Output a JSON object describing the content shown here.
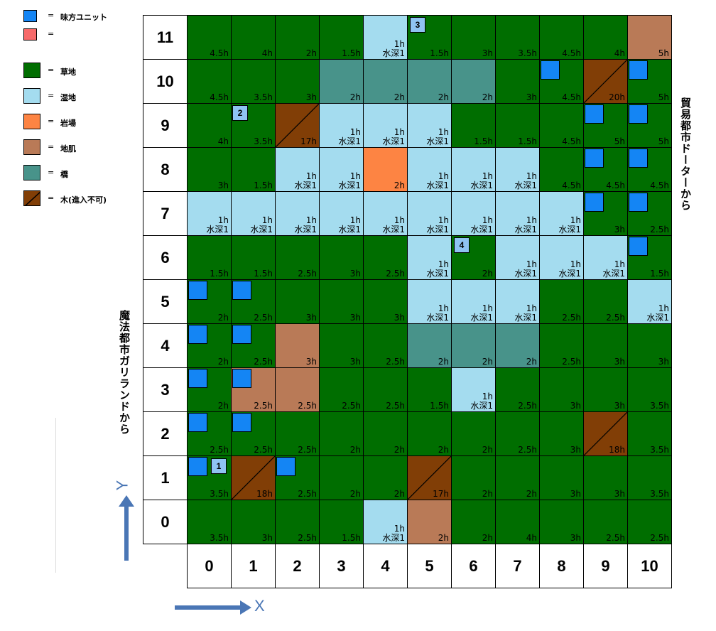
{
  "legend": {
    "items": [
      {
        "key": "ally",
        "label": "味方ユニット",
        "color": "#1485f4",
        "small": true
      },
      {
        "key": "enemy",
        "label": "",
        "color": "#f76a6a",
        "small": true
      },
      {
        "key": "grass",
        "label": "草地",
        "color": "#006e00"
      },
      {
        "key": "wet",
        "label": "湿地",
        "color": "#a4dcef"
      },
      {
        "key": "rock",
        "label": "岩場",
        "color": "#fd8443"
      },
      {
        "key": "soil",
        "label": "地肌",
        "color": "#b97a57"
      },
      {
        "key": "bridge",
        "label": "橋",
        "color": "#48938a"
      },
      {
        "key": "tree",
        "label": "木(進入不可)",
        "color": "#813e06",
        "diag": true
      }
    ],
    "eq": "="
  },
  "terrain_colors": {
    "G": "#006e00",
    "W": "#a4dcef",
    "R": "#fd8443",
    "S": "#b97a57",
    "B": "#48938a",
    "T": "#813e06"
  },
  "water_label": "水深1",
  "map": {
    "rows": [
      {
        "y": "11",
        "cells": [
          {
            "t": "G",
            "c": "4.5h"
          },
          {
            "t": "G",
            "c": "4h"
          },
          {
            "t": "G",
            "c": "2h"
          },
          {
            "t": "G",
            "c": "1.5h"
          },
          {
            "t": "W",
            "c": "1h",
            "w": true
          },
          {
            "t": "G",
            "c": "1.5h"
          },
          {
            "t": "G",
            "c": "3h"
          },
          {
            "t": "G",
            "c": "3.5h"
          },
          {
            "t": "G",
            "c": "4.5h"
          },
          {
            "t": "G",
            "c": "4h"
          },
          {
            "t": "S",
            "c": "5h"
          }
        ]
      },
      {
        "y": "10",
        "cells": [
          {
            "t": "G",
            "c": "4.5h"
          },
          {
            "t": "G",
            "c": "3.5h"
          },
          {
            "t": "G",
            "c": "3h"
          },
          {
            "t": "B",
            "c": "2h"
          },
          {
            "t": "B",
            "c": "2h"
          },
          {
            "t": "B",
            "c": "2h"
          },
          {
            "t": "B",
            "c": "2h"
          },
          {
            "t": "G",
            "c": "3h"
          },
          {
            "t": "G",
            "c": "4.5h"
          },
          {
            "t": "T",
            "c": "20h"
          },
          {
            "t": "G",
            "c": "5h"
          }
        ]
      },
      {
        "y": "9",
        "cells": [
          {
            "t": "G",
            "c": "4h"
          },
          {
            "t": "G",
            "c": "3.5h"
          },
          {
            "t": "T",
            "c": "17h"
          },
          {
            "t": "W",
            "c": "1h",
            "w": true
          },
          {
            "t": "W",
            "c": "1h",
            "w": true
          },
          {
            "t": "W",
            "c": "1h",
            "w": true
          },
          {
            "t": "G",
            "c": "1.5h"
          },
          {
            "t": "G",
            "c": "1.5h"
          },
          {
            "t": "G",
            "c": "4.5h"
          },
          {
            "t": "G",
            "c": "5h"
          },
          {
            "t": "G",
            "c": "5h"
          }
        ]
      },
      {
        "y": "8",
        "cells": [
          {
            "t": "G",
            "c": "3h"
          },
          {
            "t": "G",
            "c": "1.5h"
          },
          {
            "t": "W",
            "c": "1h",
            "w": true
          },
          {
            "t": "W",
            "c": "1h",
            "w": true
          },
          {
            "t": "R",
            "c": "2h"
          },
          {
            "t": "W",
            "c": "1h",
            "w": true
          },
          {
            "t": "W",
            "c": "1h",
            "w": true
          },
          {
            "t": "W",
            "c": "1h",
            "w": true
          },
          {
            "t": "G",
            "c": "4.5h"
          },
          {
            "t": "G",
            "c": "4.5h"
          },
          {
            "t": "G",
            "c": "4.5h"
          }
        ]
      },
      {
        "y": "7",
        "cells": [
          {
            "t": "W",
            "c": "1h",
            "w": true
          },
          {
            "t": "W",
            "c": "1h",
            "w": true
          },
          {
            "t": "W",
            "c": "1h",
            "w": true
          },
          {
            "t": "W",
            "c": "1h",
            "w": true
          },
          {
            "t": "W",
            "c": "1h",
            "w": true
          },
          {
            "t": "W",
            "c": "1h",
            "w": true
          },
          {
            "t": "W",
            "c": "1h",
            "w": true
          },
          {
            "t": "W",
            "c": "1h",
            "w": true
          },
          {
            "t": "W",
            "c": "1h",
            "w": true
          },
          {
            "t": "G",
            "c": "3h"
          },
          {
            "t": "G",
            "c": "2.5h"
          }
        ]
      },
      {
        "y": "6",
        "cells": [
          {
            "t": "G",
            "c": "1.5h"
          },
          {
            "t": "G",
            "c": "1.5h"
          },
          {
            "t": "G",
            "c": "2.5h"
          },
          {
            "t": "G",
            "c": "3h"
          },
          {
            "t": "G",
            "c": "2.5h"
          },
          {
            "t": "W",
            "c": "1h",
            "w": true
          },
          {
            "t": "G",
            "c": "2h"
          },
          {
            "t": "W",
            "c": "1h",
            "w": true
          },
          {
            "t": "W",
            "c": "1h",
            "w": true
          },
          {
            "t": "W",
            "c": "1h",
            "w": true
          },
          {
            "t": "G",
            "c": "1.5h"
          }
        ]
      },
      {
        "y": "5",
        "cells": [
          {
            "t": "G",
            "c": "2h"
          },
          {
            "t": "G",
            "c": "2.5h"
          },
          {
            "t": "G",
            "c": "3h"
          },
          {
            "t": "G",
            "c": "3h"
          },
          {
            "t": "G",
            "c": "3h"
          },
          {
            "t": "W",
            "c": "1h",
            "w": true
          },
          {
            "t": "W",
            "c": "1h",
            "w": true
          },
          {
            "t": "W",
            "c": "1h",
            "w": true
          },
          {
            "t": "G",
            "c": "2.5h"
          },
          {
            "t": "G",
            "c": "2.5h"
          },
          {
            "t": "W",
            "c": "1h",
            "w": true
          }
        ]
      },
      {
        "y": "4",
        "cells": [
          {
            "t": "G",
            "c": "2h"
          },
          {
            "t": "G",
            "c": "2.5h"
          },
          {
            "t": "S",
            "c": "3h"
          },
          {
            "t": "G",
            "c": "3h"
          },
          {
            "t": "G",
            "c": "2.5h"
          },
          {
            "t": "B",
            "c": "2h"
          },
          {
            "t": "B",
            "c": "2h"
          },
          {
            "t": "B",
            "c": "2h"
          },
          {
            "t": "G",
            "c": "2.5h"
          },
          {
            "t": "G",
            "c": "3h"
          },
          {
            "t": "G",
            "c": "3h"
          }
        ]
      },
      {
        "y": "3",
        "cells": [
          {
            "t": "G",
            "c": "2h"
          },
          {
            "t": "S",
            "c": "2.5h"
          },
          {
            "t": "S",
            "c": "2.5h"
          },
          {
            "t": "G",
            "c": "2.5h"
          },
          {
            "t": "G",
            "c": "2.5h"
          },
          {
            "t": "G",
            "c": "1.5h"
          },
          {
            "t": "W",
            "c": "1h",
            "w": true
          },
          {
            "t": "G",
            "c": "2.5h"
          },
          {
            "t": "G",
            "c": "3h"
          },
          {
            "t": "G",
            "c": "3h"
          },
          {
            "t": "G",
            "c": "3.5h"
          }
        ]
      },
      {
        "y": "2",
        "cells": [
          {
            "t": "G",
            "c": "2.5h"
          },
          {
            "t": "G",
            "c": "2.5h"
          },
          {
            "t": "G",
            "c": "2.5h"
          },
          {
            "t": "G",
            "c": "2h"
          },
          {
            "t": "G",
            "c": "2h"
          },
          {
            "t": "G",
            "c": "2h"
          },
          {
            "t": "G",
            "c": "2h"
          },
          {
            "t": "G",
            "c": "2.5h"
          },
          {
            "t": "G",
            "c": "3h"
          },
          {
            "t": "T",
            "c": "18h"
          },
          {
            "t": "G",
            "c": "3.5h"
          }
        ]
      },
      {
        "y": "1",
        "cells": [
          {
            "t": "G",
            "c": "3.5h"
          },
          {
            "t": "T",
            "c": "18h"
          },
          {
            "t": "G",
            "c": "2.5h"
          },
          {
            "t": "G",
            "c": "2h"
          },
          {
            "t": "G",
            "c": "2h"
          },
          {
            "t": "T",
            "c": "17h"
          },
          {
            "t": "G",
            "c": "2h"
          },
          {
            "t": "G",
            "c": "2h"
          },
          {
            "t": "G",
            "c": "3h"
          },
          {
            "t": "G",
            "c": "3h"
          },
          {
            "t": "G",
            "c": "3.5h"
          }
        ]
      },
      {
        "y": "0",
        "cells": [
          {
            "t": "G",
            "c": "3.5h"
          },
          {
            "t": "G",
            "c": "3h"
          },
          {
            "t": "G",
            "c": "2.5h"
          },
          {
            "t": "G",
            "c": "1.5h"
          },
          {
            "t": "W",
            "c": "1h",
            "w": true
          },
          {
            "t": "S",
            "c": "2h"
          },
          {
            "t": "G",
            "c": "2h"
          },
          {
            "t": "G",
            "c": "4h"
          },
          {
            "t": "G",
            "c": "3h"
          },
          {
            "t": "G",
            "c": "2.5h"
          },
          {
            "t": "G",
            "c": "2.5h"
          }
        ]
      }
    ],
    "x_labels": [
      "0",
      "1",
      "2",
      "3",
      "4",
      "5",
      "6",
      "7",
      "8",
      "9",
      "10"
    ]
  },
  "allies": [
    {
      "x": 0,
      "y": 1,
      "slot": "tl"
    },
    {
      "x": 2,
      "y": 1,
      "slot": "tl"
    },
    {
      "x": 0,
      "y": 2,
      "slot": "tl"
    },
    {
      "x": 1,
      "y": 2,
      "slot": "tl"
    },
    {
      "x": 0,
      "y": 3,
      "slot": "tl"
    },
    {
      "x": 1,
      "y": 3,
      "slot": "tl"
    },
    {
      "x": 0,
      "y": 4,
      "slot": "tl"
    },
    {
      "x": 1,
      "y": 4,
      "slot": "tl"
    },
    {
      "x": 0,
      "y": 5,
      "slot": "tl"
    },
    {
      "x": 1,
      "y": 5,
      "slot": "tl"
    },
    {
      "x": 10,
      "y": 6,
      "slot": "tl"
    },
    {
      "x": 9,
      "y": 7,
      "slot": "tl"
    },
    {
      "x": 10,
      "y": 7,
      "slot": "tl"
    },
    {
      "x": 9,
      "y": 8,
      "slot": "tl"
    },
    {
      "x": 10,
      "y": 8,
      "slot": "tl"
    },
    {
      "x": 9,
      "y": 9,
      "slot": "tl"
    },
    {
      "x": 10,
      "y": 9,
      "slot": "tl"
    },
    {
      "x": 8,
      "y": 10,
      "slot": "tl"
    },
    {
      "x": 10,
      "y": 10,
      "slot": "tl"
    }
  ],
  "numbered_units": [
    {
      "label": "1",
      "x": 0,
      "y": 1
    },
    {
      "label": "2",
      "x": 1,
      "y": 9
    },
    {
      "label": "3",
      "x": 5,
      "y": 11
    },
    {
      "label": "4",
      "x": 6,
      "y": 6
    }
  ],
  "labels": {
    "left_entry": "魔法都市ガリランドから",
    "right_entry": "貿易都市ドーターから",
    "axis_x": "X",
    "axis_y": "Y"
  }
}
